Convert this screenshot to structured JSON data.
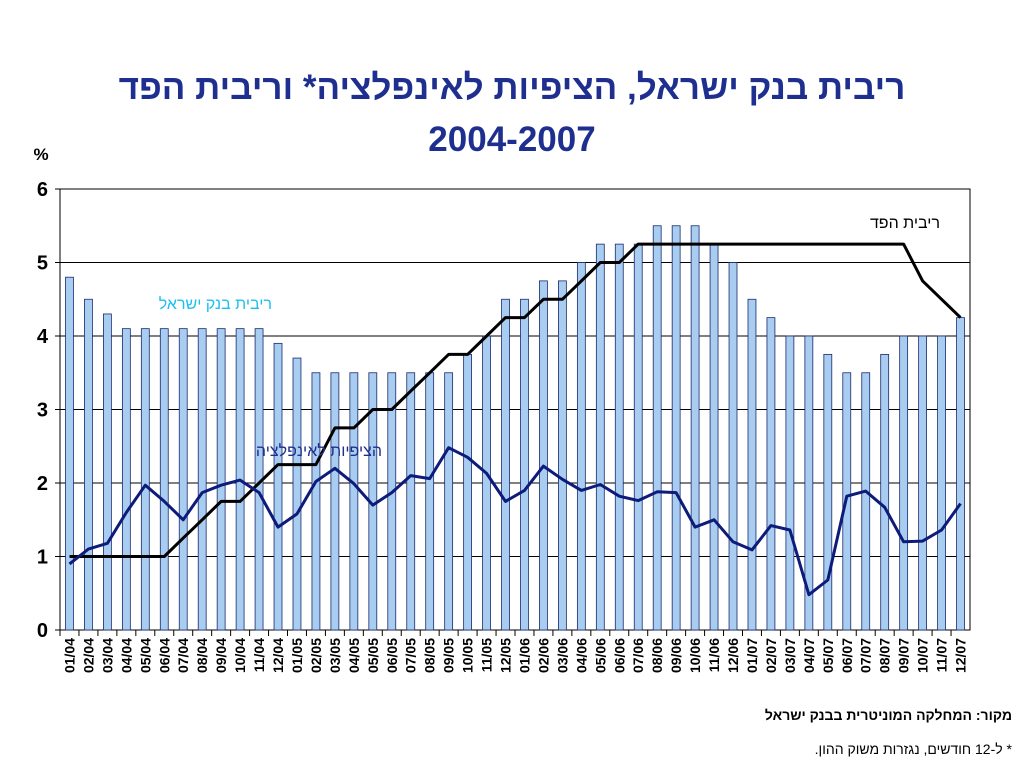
{
  "title": {
    "line1": "ריבית בנק ישראל, הציפיות לאינפלציה* וריבית הפד",
    "line2": "2004-2007"
  },
  "footer": {
    "source": "מקור: המחלקה המוניטרית בבנק ישראל",
    "note": "* ל-12 חודשים, נגזרות משוק ההון."
  },
  "chart_data": {
    "type": "bar",
    "title": "ריבית בנק ישראל, הציפיות לאינפלציה* וריבית הפד 2004-2007",
    "ylabel": "%",
    "ylim": [
      0,
      6
    ],
    "yticks": [
      0,
      1,
      2,
      3,
      4,
      5,
      6
    ],
    "grid": true,
    "legend": "inline labels",
    "categories": [
      "01/04",
      "02/04",
      "03/04",
      "04/04",
      "05/04",
      "06/04",
      "07/04",
      "08/04",
      "09/04",
      "10/04",
      "11/04",
      "12/04",
      "01/05",
      "02/05",
      "03/05",
      "04/05",
      "05/05",
      "06/05",
      "07/05",
      "08/05",
      "09/05",
      "10/05",
      "11/05",
      "12/05",
      "01/06",
      "02/06",
      "03/06",
      "04/06",
      "05/06",
      "06/06",
      "07/06",
      "08/06",
      "09/06",
      "10/06",
      "11/06",
      "12/06",
      "01/07",
      "02/07",
      "03/07",
      "04/07",
      "05/07",
      "06/07",
      "07/07",
      "08/07",
      "09/07",
      "10/07",
      "11/07",
      "12/07"
    ],
    "series": [
      {
        "name": "ריבית בנק ישראל",
        "type": "bar",
        "color": "#a8cdf0",
        "values": [
          4.8,
          4.5,
          4.3,
          4.1,
          4.1,
          4.1,
          4.1,
          4.1,
          4.1,
          4.1,
          4.1,
          3.9,
          3.7,
          3.5,
          3.5,
          3.5,
          3.5,
          3.5,
          3.5,
          3.5,
          3.5,
          3.75,
          4.0,
          4.5,
          4.5,
          4.75,
          4.75,
          5.0,
          5.25,
          5.25,
          5.25,
          5.5,
          5.5,
          5.5,
          5.25,
          5.0,
          4.5,
          4.25,
          4.0,
          4.0,
          3.75,
          3.5,
          3.5,
          3.75,
          4.0,
          4.0,
          4.0,
          4.25
        ]
      },
      {
        "name": "הציפיות לאינפלציה",
        "type": "line",
        "color": "#0d1b7a",
        "values": [
          0.9,
          1.1,
          1.18,
          1.6,
          1.97,
          1.75,
          1.5,
          1.87,
          1.97,
          2.04,
          1.87,
          1.4,
          1.58,
          2.02,
          2.2,
          1.99,
          1.7,
          1.87,
          2.1,
          2.06,
          2.48,
          2.35,
          2.13,
          1.75,
          1.9,
          2.23,
          2.05,
          1.9,
          1.98,
          1.82,
          1.76,
          1.88,
          1.87,
          1.4,
          1.5,
          1.2,
          1.09,
          1.42,
          1.36,
          0.48,
          0.68,
          1.82,
          1.89,
          1.67,
          1.2,
          1.21,
          1.36,
          1.72
        ]
      },
      {
        "name": "ריבית הפד",
        "type": "line",
        "color": "#000000",
        "values": [
          1.0,
          1.0,
          1.0,
          1.0,
          1.0,
          1.0,
          1.25,
          1.5,
          1.75,
          1.75,
          2.0,
          2.25,
          2.25,
          2.25,
          2.75,
          2.75,
          3.0,
          3.0,
          3.25,
          3.5,
          3.75,
          3.75,
          4.0,
          4.25,
          4.25,
          4.5,
          4.5,
          4.75,
          5.0,
          5.0,
          5.25,
          5.25,
          5.25,
          5.25,
          5.25,
          5.25,
          5.25,
          5.25,
          5.25,
          5.25,
          5.25,
          5.25,
          5.25,
          5.25,
          5.25,
          4.75,
          4.5,
          4.25
        ]
      }
    ],
    "colors": {
      "bars": "#a8cdf0",
      "bar_stroke": "#1a2a6e",
      "inflation": "#0d1b7a",
      "fed": "#000000",
      "label_boi": "#1ec0f0",
      "label_infl": "#1f2f8f",
      "title": "#1f2f8f"
    }
  }
}
